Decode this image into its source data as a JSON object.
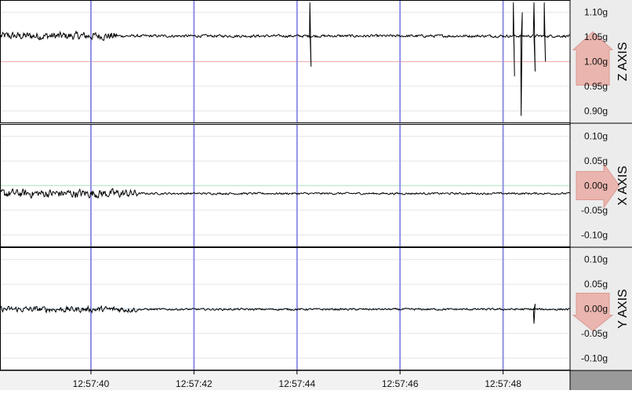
{
  "chart_data": {
    "type": "line",
    "panels": [
      {
        "axis_label": "Z AXIS",
        "y_ticks": [
          "1.10g",
          "1.05g",
          "1.00g",
          "0.95g",
          "0.90g"
        ],
        "tick_values": [
          1.1,
          1.05,
          1.0,
          0.95,
          0.9
        ],
        "ylim": [
          0.875,
          1.125
        ],
        "baseline": 1.0,
        "baseline_label": "1.00g",
        "baseline_color": "#f2b3b3",
        "arrow_color": "#eab0a8",
        "arrow_direction": "up",
        "signal": {
          "center": 1.052,
          "amp_early": 0.012,
          "amp_late": 0.004,
          "early_until": "12:57:40.5",
          "spikes": [
            {
              "t": "12:57:44.25",
              "values": [
                1.12,
                0.99
              ]
            },
            {
              "t": "12:57:48.2",
              "values": [
                1.12,
                0.97
              ]
            },
            {
              "t": "12:57:48.35",
              "values": [
                0.89,
                1.1
              ]
            },
            {
              "t": "12:57:48.6",
              "values": [
                1.12,
                0.98
              ]
            },
            {
              "t": "12:57:48.8",
              "values": [
                1.12,
                1.0
              ]
            }
          ]
        }
      },
      {
        "axis_label": "X AXIS",
        "y_ticks": [
          "0.10g",
          "0.05g",
          "0.00g",
          "-0.05g",
          "-0.10g"
        ],
        "tick_values": [
          0.1,
          0.05,
          0.0,
          -0.05,
          -0.1
        ],
        "ylim": [
          -0.125,
          0.125
        ],
        "baseline": 0.0,
        "baseline_label": "0.00g",
        "baseline_color": "#b8ecc4",
        "arrow_color": "#eab0a8",
        "arrow_direction": "right",
        "signal": {
          "center": -0.016,
          "amp_early": 0.013,
          "amp_late": 0.003,
          "early_until": "12:57:40.9",
          "spikes": []
        }
      },
      {
        "axis_label": "Y AXIS",
        "y_ticks": [
          "0.10g",
          "0.05g",
          "0.00g",
          "-0.05g",
          "-0.10g"
        ],
        "tick_values": [
          0.1,
          0.05,
          0.0,
          -0.05,
          -0.1
        ],
        "ylim": [
          -0.125,
          0.125
        ],
        "baseline": 0.0,
        "baseline_label": "0.00g",
        "baseline_color": "#c0dcf0",
        "arrow_color": "#eab0a8",
        "arrow_direction": "down",
        "signal": {
          "center": -0.001,
          "amp_early": 0.009,
          "amp_late": 0.003,
          "early_until": "12:57:40.9",
          "spikes": [
            {
              "t": "12:57:48.6",
              "values": [
                -0.03,
                0.01
              ]
            }
          ]
        }
      }
    ],
    "x_ticks": [
      "12:57:40",
      "12:57:42",
      "12:57:44",
      "12:57:46",
      "12:57:48"
    ],
    "x_tick_seconds": [
      40,
      42,
      44,
      46,
      48
    ],
    "xlim": [
      "12:57:38.25",
      "12:57:49.3"
    ],
    "xlim_seconds": [
      38.25,
      49.3
    ],
    "vertical_marker_color": "#8f8fe6",
    "grid": true,
    "xlabel": "",
    "ylabel": ""
  }
}
